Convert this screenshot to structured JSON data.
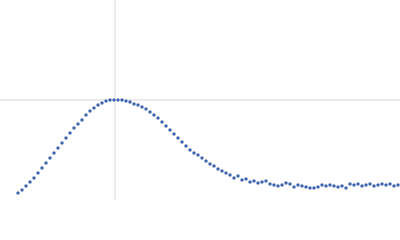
{
  "chart_data": {
    "type": "scatter",
    "x": [
      18,
      22,
      26,
      30,
      34,
      38,
      42,
      46,
      50,
      54,
      58,
      62,
      66,
      70,
      74,
      78,
      82,
      86,
      90,
      94,
      98,
      102,
      106,
      110,
      114,
      118,
      122,
      126,
      130,
      134,
      138,
      142,
      146,
      150,
      154,
      158,
      162,
      166,
      170,
      174,
      178,
      182,
      186,
      190,
      194,
      198,
      202,
      206,
      210,
      214,
      218,
      222,
      226,
      230,
      234,
      238,
      242,
      246,
      250,
      254,
      258,
      262,
      266,
      270,
      274,
      278,
      282,
      286,
      290,
      294,
      298,
      302,
      306,
      310,
      314,
      318,
      322,
      326,
      330,
      334,
      338,
      342,
      346,
      350,
      354,
      358,
      362,
      366,
      370,
      374,
      378,
      382,
      386,
      390,
      394,
      398
    ],
    "values": [
      7,
      10,
      14,
      18,
      22,
      27,
      32,
      37,
      42,
      47,
      52,
      57,
      62,
      67,
      72,
      76,
      80,
      85,
      89,
      92,
      95,
      97,
      99,
      100,
      100,
      100,
      100,
      99,
      98,
      96,
      95,
      93,
      91,
      88,
      85,
      82,
      78,
      74,
      70,
      66,
      62,
      58,
      54,
      50,
      47,
      45,
      42,
      39,
      36,
      34,
      31,
      29,
      27,
      25,
      22,
      24,
      20,
      21,
      18,
      19,
      17,
      18,
      19,
      16,
      15,
      14,
      15,
      17,
      16,
      13,
      15,
      14,
      13,
      12,
      12,
      13,
      15,
      14,
      15,
      14,
      13,
      14,
      12,
      16,
      15,
      16,
      14,
      15,
      16,
      14,
      15,
      16,
      15,
      16,
      14,
      15
    ],
    "color": "#3b63ad",
    "xlim": [
      0,
      400
    ],
    "ylim": [
      0,
      200
    ],
    "xticks": [
      115
    ],
    "yticks": [
      100
    ],
    "grid": true,
    "tick_labels": false
  }
}
